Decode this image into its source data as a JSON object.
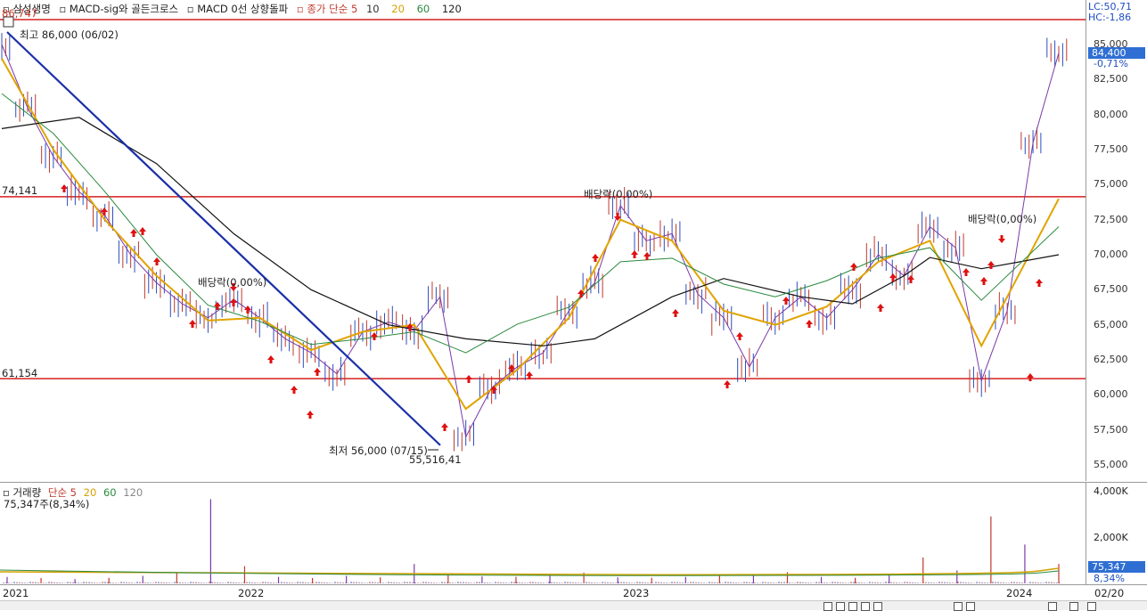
{
  "legend": {
    "items": [
      "▫ 삼성생명",
      "▫ MACD-sig와 골든크로스",
      "▫ MACD 0선 상향돌파",
      "▫ 종가 단순 5",
      "10",
      "20",
      "60",
      "120"
    ],
    "colors": [
      "#333333",
      "#333333",
      "#333333",
      "#c0392b",
      "#333333",
      "#d4a100",
      "#2b8a3e",
      "#222222"
    ]
  },
  "top_right": {
    "lc": "LC:50,71",
    "hc": "HC:-1,86"
  },
  "price_axis": {
    "ticks": [
      "85,000",
      "82,500",
      "80,000",
      "77,500",
      "75,000",
      "72,500",
      "70,000",
      "67,500",
      "65,000",
      "62,500",
      "60,000",
      "57,500",
      "55,000"
    ],
    "tick_values": [
      85000,
      82500,
      80000,
      77500,
      75000,
      72500,
      70000,
      67500,
      65000,
      62500,
      60000,
      57500,
      55000
    ],
    "current_label": "84,400",
    "current_value": 84400,
    "change_label": "-0,71%"
  },
  "annotations": {
    "top_value": "86,747",
    "high": "최고 86,000 (06/02)",
    "low": "최저 56,000 (07/15)",
    "low_trend": "55,516,41",
    "line_74": "74,141",
    "line_61": "61,154",
    "dividend_1": "배당락(0,00%)",
    "dividend_2": "배당락(0,00%)",
    "dividend_3": "배당락(0,00%)"
  },
  "volume": {
    "legend": [
      "▫ 거래량",
      "단순 5",
      "20",
      "60",
      "120"
    ],
    "legend_colors": [
      "#333333",
      "#c0392b",
      "#d4a100",
      "#2b8a3e",
      "#888888"
    ],
    "info": "75,347주(8,34%)",
    "axis_ticks": [
      "4,000K",
      "2,000K"
    ],
    "tick_values": [
      4000,
      2000
    ],
    "current_label": "75,347",
    "current_pct": "8,34%"
  },
  "date_axis": {
    "labels": [
      "2021",
      "2022",
      "2023",
      "2024",
      "02/20"
    ]
  },
  "chart_data": {
    "type": "line",
    "title": "삼성생명",
    "ylim": [
      54000,
      87000
    ],
    "horizontal_lines": [
      86747,
      74141,
      61154
    ],
    "close_series": [
      {
        "x": "2021-01",
        "y": 85000
      },
      {
        "x": "2021-02",
        "y": 80500
      },
      {
        "x": "2021-03",
        "y": 77000
      },
      {
        "x": "2021-04",
        "y": 74500
      },
      {
        "x": "2021-05",
        "y": 72800
      },
      {
        "x": "2021-06",
        "y": 70000
      },
      {
        "x": "2021-07",
        "y": 68000
      },
      {
        "x": "2021-08",
        "y": 66500
      },
      {
        "x": "2021-09",
        "y": 65500
      },
      {
        "x": "2021-10",
        "y": 66800
      },
      {
        "x": "2021-11",
        "y": 65500
      },
      {
        "x": "2021-12",
        "y": 64000
      },
      {
        "x": "2022-01",
        "y": 63000
      },
      {
        "x": "2022-02",
        "y": 61500
      },
      {
        "x": "2022-03",
        "y": 64500
      },
      {
        "x": "2022-04",
        "y": 65200
      },
      {
        "x": "2022-05",
        "y": 64600
      },
      {
        "x": "2022-06",
        "y": 67000
      },
      {
        "x": "2022-07",
        "y": 57000
      },
      {
        "x": "2022-08",
        "y": 60500
      },
      {
        "x": "2022-09",
        "y": 62000
      },
      {
        "x": "2022-10",
        "y": 63000
      },
      {
        "x": "2022-11",
        "y": 66000
      },
      {
        "x": "2022-12",
        "y": 68000
      },
      {
        "x": "2023-01",
        "y": 73500
      },
      {
        "x": "2023-02",
        "y": 71000
      },
      {
        "x": "2023-03",
        "y": 71500
      },
      {
        "x": "2023-04",
        "y": 67200
      },
      {
        "x": "2023-05",
        "y": 65500
      },
      {
        "x": "2023-06",
        "y": 62000
      },
      {
        "x": "2023-07",
        "y": 65500
      },
      {
        "x": "2023-08",
        "y": 67000
      },
      {
        "x": "2023-09",
        "y": 65500
      },
      {
        "x": "2023-10",
        "y": 67500
      },
      {
        "x": "2023-11",
        "y": 70000
      },
      {
        "x": "2023-12",
        "y": 68500
      },
      {
        "x": "2024-01",
        "y": 72000
      },
      {
        "x": "2024-01b",
        "y": 70500
      },
      {
        "x": "2024-02a",
        "y": 61000
      },
      {
        "x": "2024-02b",
        "y": 66000
      },
      {
        "x": "2024-02c",
        "y": 78000
      },
      {
        "x": "2024-02d",
        "y": 84400
      }
    ],
    "ma20_series": [
      {
        "x": "2021-01",
        "y": 84000
      },
      {
        "x": "2021-03",
        "y": 77500
      },
      {
        "x": "2021-05",
        "y": 72500
      },
      {
        "x": "2021-07",
        "y": 68500
      },
      {
        "x": "2021-09",
        "y": 65300
      },
      {
        "x": "2021-11",
        "y": 65500
      },
      {
        "x": "2022-01",
        "y": 63200
      },
      {
        "x": "2022-03",
        "y": 64500
      },
      {
        "x": "2022-05",
        "y": 65000
      },
      {
        "x": "2022-07",
        "y": 59000
      },
      {
        "x": "2022-09",
        "y": 61800
      },
      {
        "x": "2022-11",
        "y": 65500
      },
      {
        "x": "2023-01",
        "y": 72500
      },
      {
        "x": "2023-03",
        "y": 71000
      },
      {
        "x": "2023-05",
        "y": 66000
      },
      {
        "x": "2023-07",
        "y": 65000
      },
      {
        "x": "2023-09",
        "y": 66300
      },
      {
        "x": "2023-11",
        "y": 69500
      },
      {
        "x": "2024-01",
        "y": 71000
      },
      {
        "x": "2024-02a",
        "y": 63500
      },
      {
        "x": "2024-02d",
        "y": 74000
      }
    ],
    "ma120_series": [
      {
        "x": "2021-01",
        "y": 79000
      },
      {
        "x": "2021-04",
        "y": 79800
      },
      {
        "x": "2021-07",
        "y": 76500
      },
      {
        "x": "2021-10",
        "y": 71500
      },
      {
        "x": "2022-01",
        "y": 67500
      },
      {
        "x": "2022-04",
        "y": 65000
      },
      {
        "x": "2022-07",
        "y": 64000
      },
      {
        "x": "2022-10",
        "y": 63500
      },
      {
        "x": "2022-12",
        "y": 64000
      },
      {
        "x": "2023-03",
        "y": 67000
      },
      {
        "x": "2023-05",
        "y": 68300
      },
      {
        "x": "2023-08",
        "y": 67000
      },
      {
        "x": "2023-10",
        "y": 66500
      },
      {
        "x": "2023-12",
        "y": 68500
      },
      {
        "x": "2024-01",
        "y": 69800
      },
      {
        "x": "2024-02a",
        "y": 69000
      },
      {
        "x": "2024-02d",
        "y": 70000
      }
    ],
    "trendline": [
      {
        "x": "2021-01",
        "y": 86747
      },
      {
        "x": "2022-07",
        "y": 55516.41
      }
    ],
    "volume_bars_k": [
      300,
      250,
      200,
      260,
      350,
      500,
      3900,
      800,
      300,
      250,
      350,
      280,
      900,
      400,
      320,
      300,
      350,
      500,
      280,
      260,
      300,
      420,
      350,
      520,
      300,
      260,
      400,
      1200,
      600,
      3100,
      1800,
      900
    ]
  }
}
